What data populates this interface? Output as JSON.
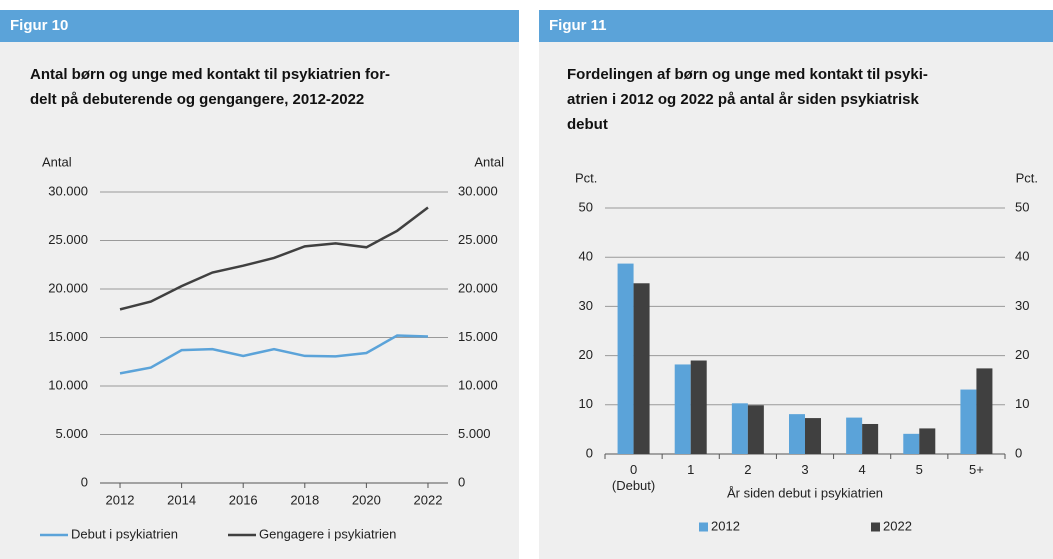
{
  "chart_data": [
    {
      "type": "line",
      "header": "Figur 10",
      "title": [
        "Antal børn og unge med kontakt til psykiatrien for-",
        "delt på debuterende og gengangere, 2012-2022"
      ],
      "y_label": "Antal",
      "y2_label": "Antal",
      "x": [
        2012,
        2013,
        2014,
        2015,
        2016,
        2017,
        2018,
        2019,
        2020,
        2021,
        2022
      ],
      "xlim": [
        2011.35,
        2022.65
      ],
      "xticks": [
        2012,
        2014,
        2016,
        2018,
        2020,
        2022
      ],
      "ylim": [
        0,
        30000
      ],
      "yticks": [
        0,
        {
          "value": 5000,
          "label": "5.000"
        },
        {
          "value": 10000,
          "label": "10.000"
        },
        {
          "value": 15000,
          "label": "15.000"
        },
        {
          "value": 20000,
          "label": "20.000"
        },
        {
          "value": 25000,
          "label": "25.000"
        },
        {
          "value": 30000,
          "label": "30.000"
        }
      ],
      "y2lim": [
        0,
        30000
      ],
      "y2ticks": [
        0,
        {
          "value": 5000,
          "label": "5.000"
        },
        {
          "value": 10000,
          "label": "10.000"
        },
        {
          "value": 15000,
          "label": "15.000"
        },
        {
          "value": 20000,
          "label": "20.000"
        },
        {
          "value": 25000,
          "label": "25.000"
        },
        {
          "value": 30000,
          "label": "30.000"
        }
      ],
      "grid": true,
      "series": [
        {
          "name": "Debut i psykiatrien",
          "color": "#5ba3d9",
          "values": [
            11300,
            11900,
            13700,
            13800,
            13100,
            13800,
            13100,
            13050,
            13400,
            15200,
            15100
          ]
        },
        {
          "name": "Gengagere i psykiatrien",
          "color": "#404040",
          "values": [
            17900,
            18700,
            20300,
            21700,
            22400,
            23200,
            24400,
            24700,
            24300,
            26000,
            28400
          ]
        }
      ]
    },
    {
      "type": "bar",
      "header": "Figur 11",
      "title": [
        "Fordelingen af børn og unge med kontakt til psyki-",
        "atrien i 2012 og 2022 på antal år siden psykiatrisk",
        "debut"
      ],
      "y_label": "Pct.",
      "y2_label": "Pct.",
      "x_label": "År siden debut i psykiatrien",
      "categories": [
        "0\n(Debut)",
        "1",
        "2",
        "3",
        "4",
        "5",
        "5+"
      ],
      "ylim": [
        0,
        50
      ],
      "yticks": [
        0,
        10,
        20,
        30,
        40,
        50
      ],
      "y2lim": [
        0,
        50
      ],
      "y2ticks": [
        0,
        10,
        20,
        30,
        40,
        50
      ],
      "grid": true,
      "series": [
        {
          "name": "2012",
          "color": "#5ba3d9",
          "values": [
            38.7,
            18.2,
            10.3,
            8.1,
            7.4,
            4.1,
            13.1
          ]
        },
        {
          "name": "2022",
          "color": "#404040",
          "values": [
            34.7,
            19.0,
            9.9,
            7.3,
            6.1,
            5.2,
            17.4
          ]
        }
      ]
    }
  ]
}
